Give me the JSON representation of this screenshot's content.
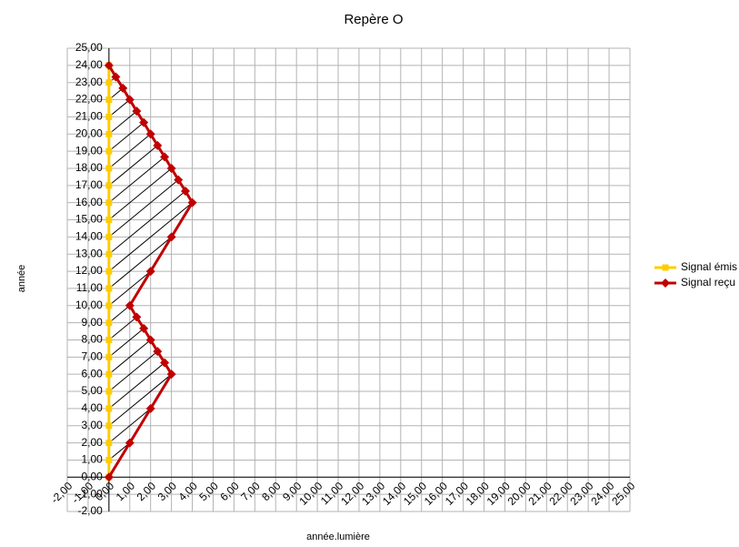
{
  "chart_data": {
    "type": "line",
    "title": "Repère O",
    "x_label": "année.lumière",
    "y_label": "année",
    "xlim": [
      -2,
      25
    ],
    "ylim": [
      -2,
      25
    ],
    "grid": true,
    "legend": "right",
    "xticks": [
      {
        "value": -2,
        "label": "-2,00"
      },
      {
        "value": -1,
        "label": "-1,00"
      },
      {
        "value": 0,
        "label": "0,00"
      },
      {
        "value": 1,
        "label": "1,00"
      },
      {
        "value": 2,
        "label": "2,00"
      },
      {
        "value": 3,
        "label": "3,00"
      },
      {
        "value": 4,
        "label": "4,00"
      },
      {
        "value": 5,
        "label": "5,00"
      },
      {
        "value": 6,
        "label": "6,00"
      },
      {
        "value": 7,
        "label": "7,00"
      },
      {
        "value": 8,
        "label": "8,00"
      },
      {
        "value": 9,
        "label": "9,00"
      },
      {
        "value": 10,
        "label": "10,00"
      },
      {
        "value": 11,
        "label": "11,00"
      },
      {
        "value": 12,
        "label": "12,00"
      },
      {
        "value": 13,
        "label": "13,00"
      },
      {
        "value": 14,
        "label": "14,00"
      },
      {
        "value": 15,
        "label": "15,00"
      },
      {
        "value": 16,
        "label": "16,00"
      },
      {
        "value": 17,
        "label": "17,00"
      },
      {
        "value": 18,
        "label": "18,00"
      },
      {
        "value": 19,
        "label": "19,00"
      },
      {
        "value": 20,
        "label": "20,00"
      },
      {
        "value": 21,
        "label": "21,00"
      },
      {
        "value": 22,
        "label": "22,00"
      },
      {
        "value": 23,
        "label": "23,00"
      },
      {
        "value": 24,
        "label": "24,00"
      },
      {
        "value": 25,
        "label": "25,00"
      }
    ],
    "yticks": [
      {
        "value": -2,
        "label": "-2,00"
      },
      {
        "value": -1,
        "label": "-1,00"
      },
      {
        "value": 0,
        "label": "0,00"
      },
      {
        "value": 1,
        "label": "1,00"
      },
      {
        "value": 2,
        "label": "2,00"
      },
      {
        "value": 3,
        "label": "3,00"
      },
      {
        "value": 4,
        "label": "4,00"
      },
      {
        "value": 5,
        "label": "5,00"
      },
      {
        "value": 6,
        "label": "6,00"
      },
      {
        "value": 7,
        "label": "7,00"
      },
      {
        "value": 8,
        "label": "8,00"
      },
      {
        "value": 9,
        "label": "9,00"
      },
      {
        "value": 10,
        "label": "10,00"
      },
      {
        "value": 11,
        "label": "11,00"
      },
      {
        "value": 12,
        "label": "12,00"
      },
      {
        "value": 13,
        "label": "13,00"
      },
      {
        "value": 14,
        "label": "14,00"
      },
      {
        "value": 15,
        "label": "15,00"
      },
      {
        "value": 16,
        "label": "16,00"
      },
      {
        "value": 17,
        "label": "17,00"
      },
      {
        "value": 18,
        "label": "18,00"
      },
      {
        "value": 19,
        "label": "19,00"
      },
      {
        "value": 20,
        "label": "20,00"
      },
      {
        "value": 21,
        "label": "21,00"
      },
      {
        "value": 22,
        "label": "22,00"
      },
      {
        "value": 23,
        "label": "23,00"
      },
      {
        "value": 24,
        "label": "24,00"
      },
      {
        "value": 25,
        "label": "25,00"
      }
    ],
    "series": [
      {
        "name": "Signal émis",
        "color": "#ffcc00",
        "marker": "square",
        "x": [
          0,
          0,
          0,
          0,
          0,
          0,
          0,
          0,
          0,
          0,
          0,
          0,
          0,
          0,
          0,
          0,
          0,
          0,
          0,
          0,
          0,
          0,
          0,
          0,
          0
        ],
        "values": [
          0,
          1,
          2,
          3,
          4,
          5,
          6,
          7,
          8,
          9,
          10,
          11,
          12,
          13,
          14,
          15,
          16,
          17,
          18,
          19,
          20,
          21,
          22,
          23,
          24
        ]
      },
      {
        "name": "Signal reçu",
        "color": "#c00000",
        "marker": "diamond",
        "x": [
          0,
          1,
          2,
          3,
          2.67,
          2.33,
          2,
          1.67,
          1.33,
          1,
          2,
          3,
          4,
          3.67,
          3.33,
          3,
          2.67,
          2.33,
          2,
          1.67,
          1.33,
          1,
          0.67,
          0.33,
          0
        ],
        "values": [
          0,
          2,
          4,
          6,
          6.67,
          7.33,
          8,
          8.67,
          9.33,
          10,
          12,
          14,
          16,
          16.67,
          17.33,
          18,
          18.67,
          19.33,
          20,
          20.67,
          21.33,
          22,
          22.67,
          23.33,
          24
        ]
      }
    ]
  }
}
